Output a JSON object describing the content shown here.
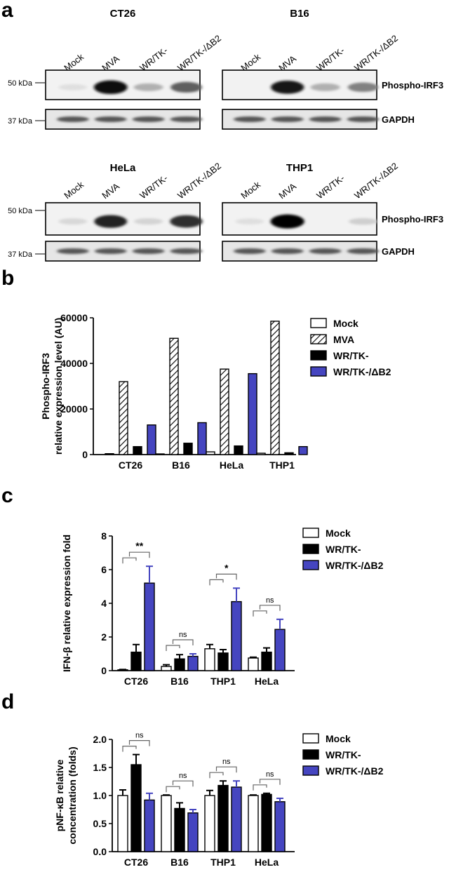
{
  "panels": {
    "a": "a",
    "b": "b",
    "c": "c",
    "d": "d"
  },
  "blots": {
    "lanes": [
      "Mock",
      "MVA",
      "WR/TK-",
      "WR/TK-/ΔB2"
    ],
    "cells": [
      "CT26",
      "B16",
      "HeLa",
      "THP1"
    ],
    "band_labels": [
      "Phospho-IRF3",
      "GAPDH"
    ],
    "markers": [
      "50 kDa",
      "37 kDa"
    ],
    "band_intensity": {
      "CT26": [
        0.05,
        0.95,
        0.25,
        0.6
      ],
      "B16": [
        0.0,
        0.9,
        0.25,
        0.45
      ],
      "HeLa": [
        0.08,
        0.85,
        0.1,
        0.8
      ],
      "THP1": [
        0.05,
        1.0,
        0.0,
        0.12
      ]
    }
  },
  "chart_data": [
    {
      "type": "bar",
      "panel": "b",
      "categories": [
        "CT26",
        "B16",
        "HeLa",
        "THP1"
      ],
      "series": [
        {
          "name": "Mock",
          "values": [
            400,
            300,
            1200,
            600
          ],
          "fill": "white"
        },
        {
          "name": "MVA",
          "values": [
            32000,
            51000,
            37500,
            58500
          ],
          "fill": "hatch"
        },
        {
          "name": "WR/TK-",
          "values": [
            3500,
            5000,
            3800,
            800
          ],
          "fill": "#000000"
        },
        {
          "name": "WR/TK-/ΔB2",
          "values": [
            13000,
            14000,
            35500,
            3500
          ],
          "fill": "#4545c0"
        }
      ],
      "ylabel": [
        "Phospho-IRF3",
        "relative expression level (AU)"
      ],
      "yticks": [
        "0",
        "20000",
        "40000",
        "60000"
      ],
      "ylim": [
        0,
        60000
      ],
      "legend_position": "top-right"
    },
    {
      "type": "bar",
      "panel": "c",
      "categories": [
        "CT26",
        "B16",
        "THP1",
        "HeLa"
      ],
      "series": [
        {
          "name": "Mock",
          "values": [
            0.05,
            0.25,
            1.3,
            0.75
          ],
          "errors": [
            0.02,
            0.1,
            0.25,
            0.05
          ],
          "fill": "white"
        },
        {
          "name": "WR/TK-",
          "values": [
            1.1,
            0.7,
            1.05,
            1.1
          ],
          "errors": [
            0.45,
            0.25,
            0.2,
            0.25
          ],
          "fill": "#000000"
        },
        {
          "name": "WR/TK-/ΔB2",
          "values": [
            5.2,
            0.85,
            4.1,
            2.45
          ],
          "errors": [
            1.0,
            0.15,
            0.8,
            0.6
          ],
          "fill": "#4545c0"
        }
      ],
      "significance": [
        "**",
        "ns",
        "*",
        "ns"
      ],
      "ylabel": [
        "IFN-β relative expression fold"
      ],
      "yticks": [
        "0",
        "2",
        "4",
        "6",
        "8"
      ],
      "ylim": [
        0,
        8
      ],
      "legend_position": "top-right"
    },
    {
      "type": "bar",
      "panel": "d",
      "categories": [
        "CT26",
        "B16",
        "THP1",
        "HeLa"
      ],
      "series": [
        {
          "name": "Mock",
          "values": [
            1.0,
            1.0,
            1.0,
            1.0
          ],
          "errors": [
            0.1,
            0.01,
            0.09,
            0.01
          ],
          "fill": "white"
        },
        {
          "name": "WR/TK-",
          "values": [
            1.55,
            0.77,
            1.18,
            1.02
          ],
          "errors": [
            0.18,
            0.1,
            0.08,
            0.02
          ],
          "fill": "#000000"
        },
        {
          "name": "WR/TK-/ΔB2",
          "values": [
            0.92,
            0.69,
            1.15,
            0.89
          ],
          "errors": [
            0.12,
            0.06,
            0.11,
            0.06
          ],
          "fill": "#4545c0"
        }
      ],
      "significance": [
        "ns",
        "ns",
        "ns",
        "ns"
      ],
      "ylabel": [
        "pNF-κB relative",
        "concentration (folds)"
      ],
      "yticks": [
        "0.0",
        "0.5",
        "1.0",
        "1.5",
        "2.0"
      ],
      "ylim": [
        0,
        2
      ],
      "legend_position": "top-right"
    }
  ]
}
